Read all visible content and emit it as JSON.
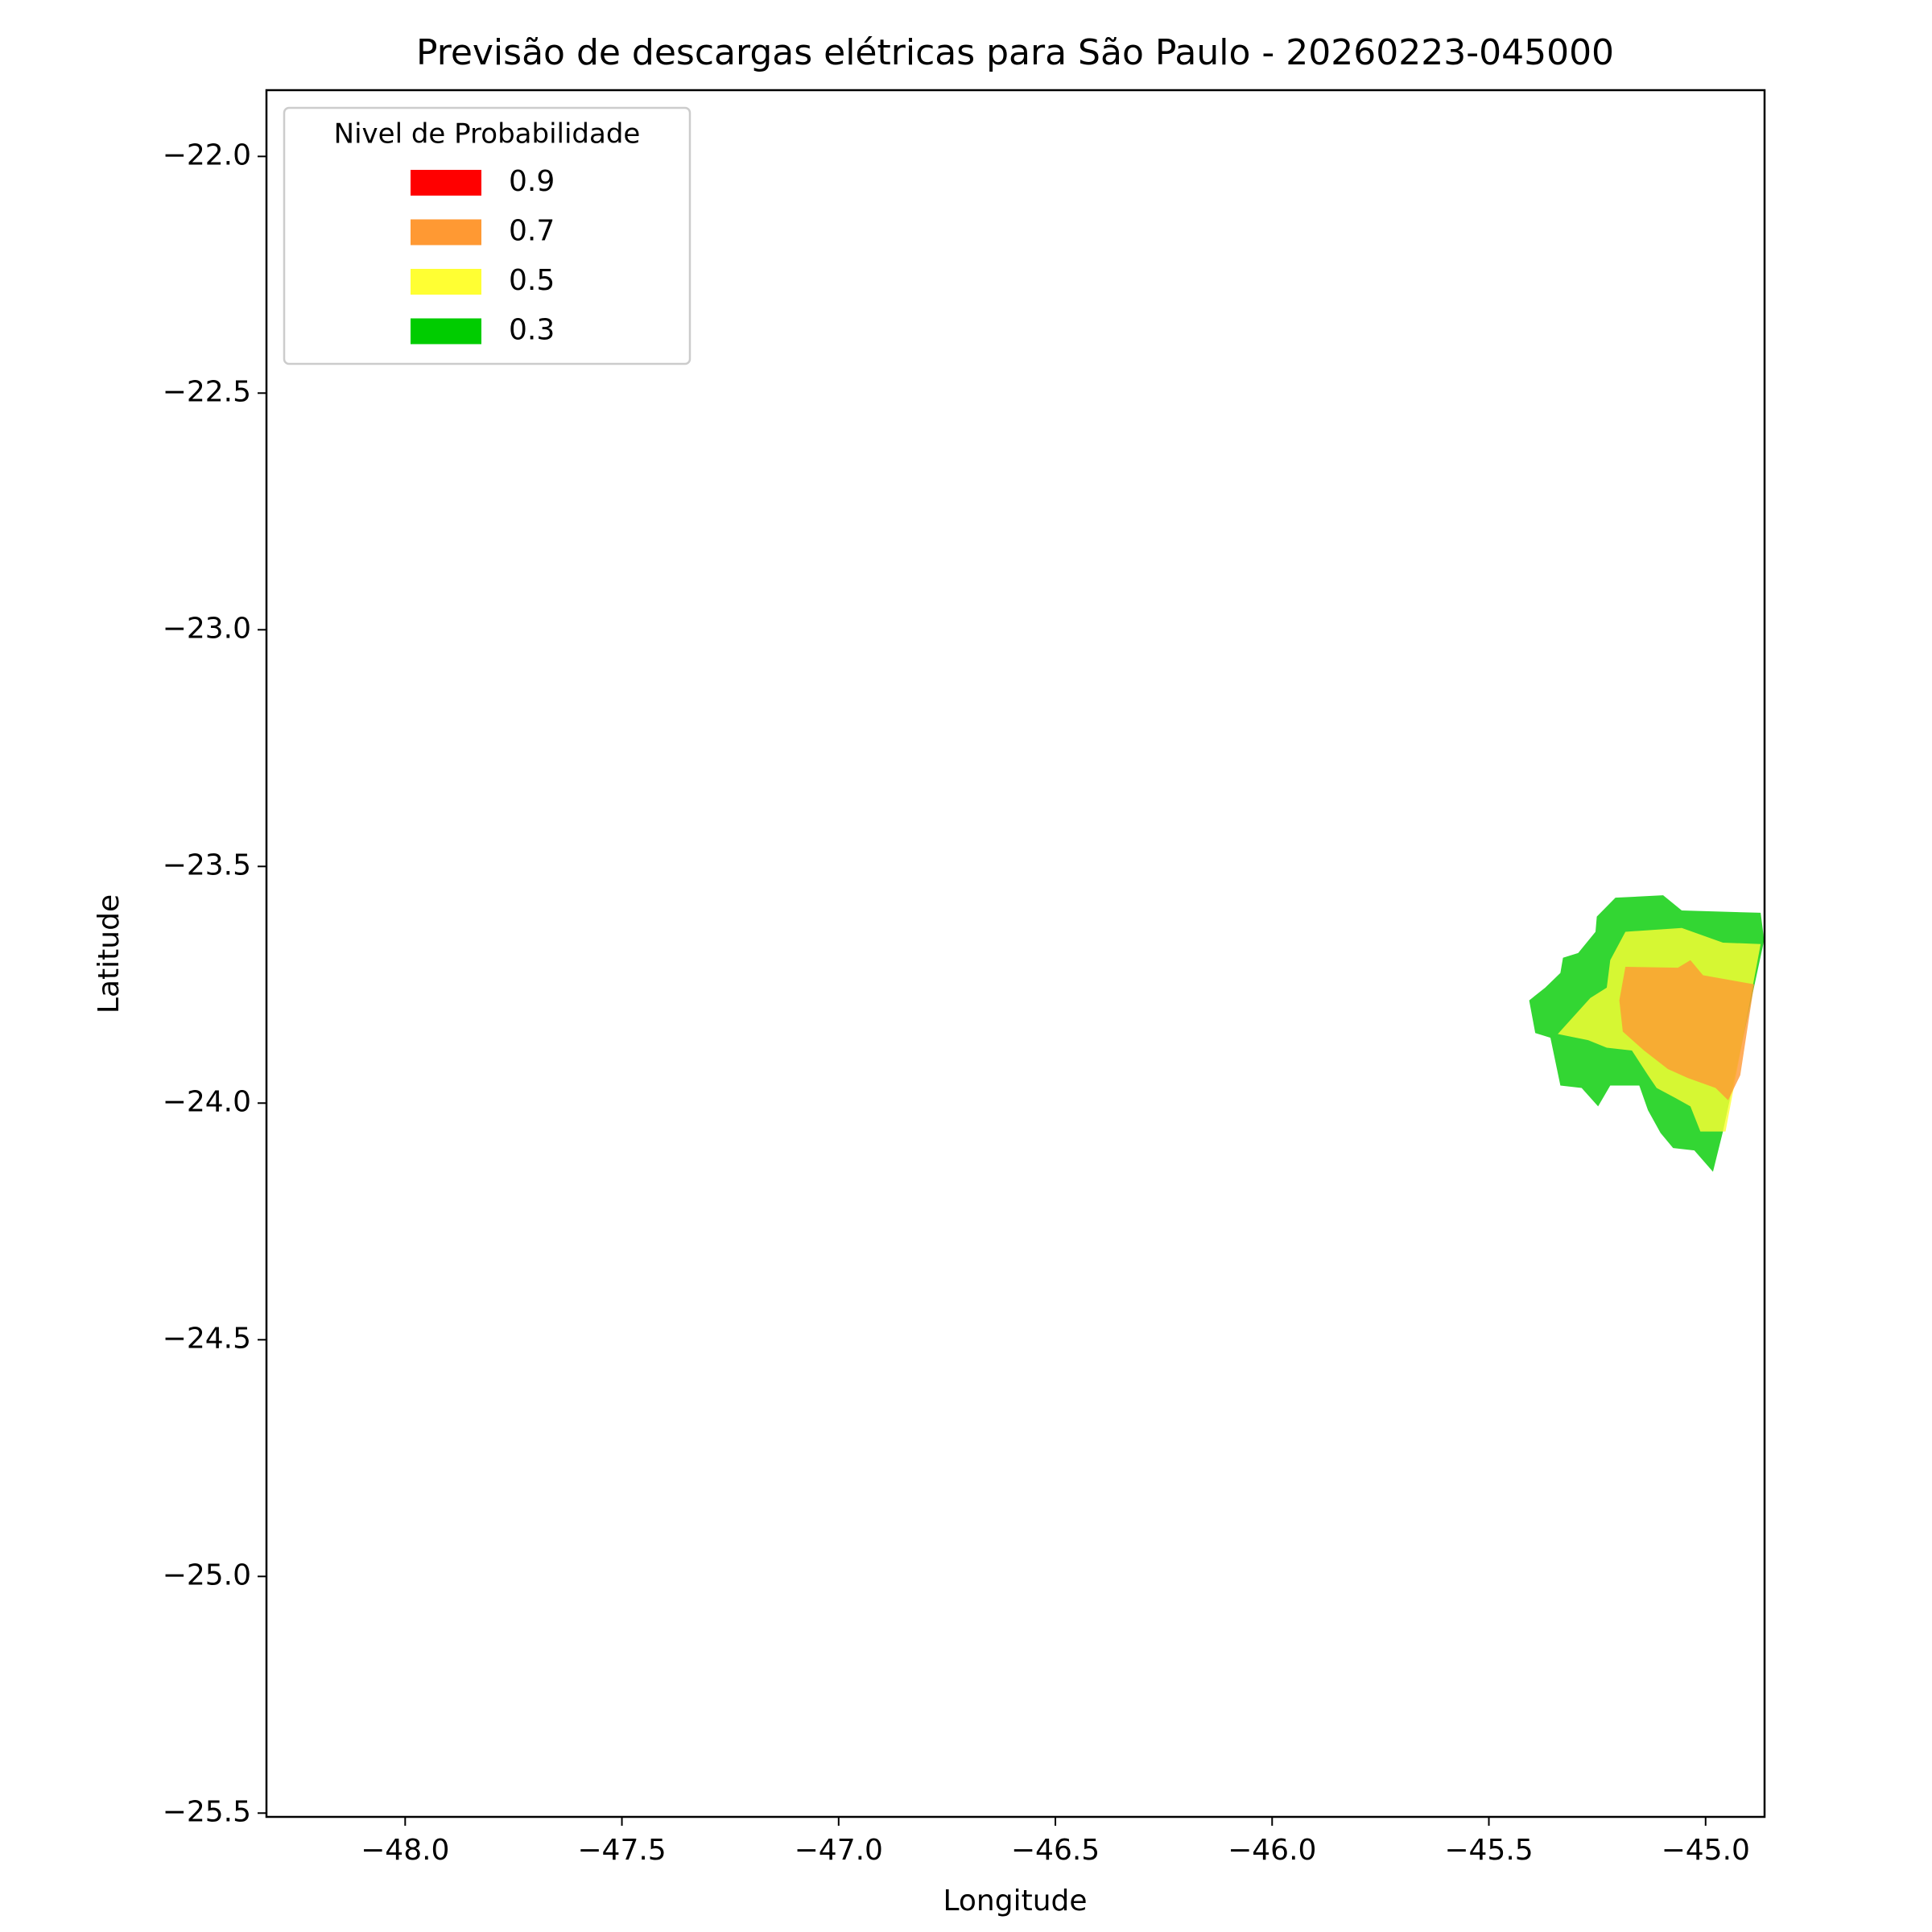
{
  "chart_data": {
    "type": "filled-contour",
    "title": "Previsão de descargas elétricas para São Paulo - 20260223-045000",
    "x_label": "Longitude",
    "y_label": "Latitude",
    "xlim": [
      -48.32,
      -44.864
    ],
    "ylim": [
      -25.508,
      -21.86
    ],
    "xticks": [
      {
        "value": -48.0,
        "label": "−48.0"
      },
      {
        "value": -47.5,
        "label": "−47.5"
      },
      {
        "value": -47.0,
        "label": "−47.0"
      },
      {
        "value": -46.5,
        "label": "−46.5"
      },
      {
        "value": -46.0,
        "label": "−46.0"
      },
      {
        "value": -45.5,
        "label": "−45.5"
      },
      {
        "value": -45.0,
        "label": "−45.0"
      }
    ],
    "yticks": [
      {
        "value": -22.0,
        "label": "−22.0"
      },
      {
        "value": -22.5,
        "label": "−22.5"
      },
      {
        "value": -23.0,
        "label": "−23.0"
      },
      {
        "value": -23.5,
        "label": "−23.5"
      },
      {
        "value": -24.0,
        "label": "−24.0"
      },
      {
        "value": -24.5,
        "label": "−24.5"
      },
      {
        "value": -25.0,
        "label": "−25.0"
      },
      {
        "value": -25.5,
        "label": "−25.5"
      }
    ],
    "legend_title": "Nivel de Probabilidade",
    "legend": "upper left",
    "alpha": 0.8,
    "series": [
      {
        "name": "0.9",
        "color": "#ff0000",
        "polygons": []
      },
      {
        "name": "0.7",
        "color": "#ff9933",
        "polygons": [
          [
            [
              -45.185,
              -23.712
            ],
            [
              -45.064,
              -23.714
            ],
            [
              -45.035,
              -23.698
            ],
            [
              -45.006,
              -23.73
            ],
            [
              -44.888,
              -23.749
            ],
            [
              -44.92,
              -23.941
            ],
            [
              -44.948,
              -23.994
            ],
            [
              -44.977,
              -23.968
            ],
            [
              -45.041,
              -23.947
            ],
            [
              -45.087,
              -23.928
            ],
            [
              -45.142,
              -23.889
            ],
            [
              -45.191,
              -23.849
            ],
            [
              -45.199,
              -23.783
            ]
          ]
        ]
      },
      {
        "name": "0.5",
        "color": "#ffff33",
        "polygons": [
          [
            [
              -45.341,
              -23.854
            ],
            [
              -45.266,
              -23.778
            ],
            [
              -45.228,
              -23.756
            ],
            [
              -45.22,
              -23.698
            ],
            [
              -45.185,
              -23.638
            ],
            [
              -45.055,
              -23.63
            ],
            [
              -44.96,
              -23.661
            ],
            [
              -44.873,
              -23.664
            ],
            [
              -44.954,
              -24.06
            ],
            [
              -45.012,
              -24.06
            ],
            [
              -45.035,
              -24.007
            ],
            [
              -45.07,
              -23.989
            ],
            [
              -45.113,
              -23.968
            ],
            [
              -45.133,
              -23.941
            ],
            [
              -45.17,
              -23.889
            ],
            [
              -45.228,
              -23.883
            ],
            [
              -45.271,
              -23.867
            ]
          ]
        ]
      },
      {
        "name": "0.3",
        "color": "#00cc00",
        "polygons": [
          [
            [
              -45.407,
              -23.783
            ],
            [
              -45.37,
              -23.756
            ],
            [
              -45.335,
              -23.725
            ],
            [
              -45.329,
              -23.693
            ],
            [
              -45.294,
              -23.683
            ],
            [
              -45.254,
              -23.638
            ],
            [
              -45.251,
              -23.606
            ],
            [
              -45.208,
              -23.566
            ],
            [
              -45.098,
              -23.561
            ],
            [
              -45.055,
              -23.593
            ],
            [
              -44.873,
              -23.598
            ],
            [
              -44.865,
              -23.656
            ],
            [
              -44.96,
              -24.06
            ],
            [
              -44.983,
              -24.145
            ],
            [
              -45.026,
              -24.1
            ],
            [
              -45.075,
              -24.095
            ],
            [
              -45.104,
              -24.063
            ],
            [
              -45.133,
              -24.015
            ],
            [
              -45.153,
              -23.963
            ],
            [
              -45.22,
              -23.963
            ],
            [
              -45.248,
              -24.007
            ],
            [
              -45.286,
              -23.968
            ],
            [
              -45.335,
              -23.963
            ],
            [
              -45.358,
              -23.862
            ],
            [
              -45.393,
              -23.852
            ]
          ]
        ]
      }
    ]
  }
}
